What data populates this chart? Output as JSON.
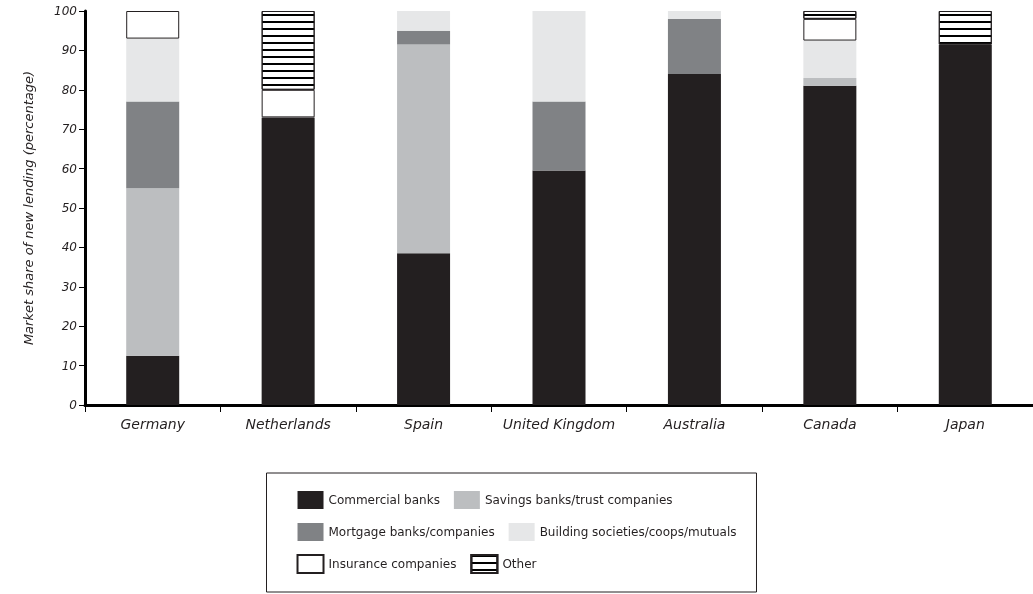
{
  "chart_data": {
    "type": "bar",
    "stacked": true,
    "ylabel": "Market share of new lending (percentage)",
    "categories": [
      "Germany",
      "Netherlands",
      "Spain",
      "United Kingdom",
      "Australia",
      "Canada",
      "Japan"
    ],
    "series": [
      {
        "name": "Commercial banks",
        "color": "#231f20",
        "values": [
          12.5,
          73,
          38.5,
          59.5,
          84,
          81,
          91.5
        ]
      },
      {
        "name": "Savings banks/trust companies",
        "color": "#bcbec0",
        "values": [
          42.5,
          null,
          53,
          null,
          null,
          2,
          null
        ]
      },
      {
        "name": "Mortgage banks/companies",
        "color": "#808285",
        "values": [
          22,
          null,
          3.5,
          17.5,
          14,
          null,
          null
        ]
      },
      {
        "name": "Building societies/coops/mutuals",
        "color": "#e6e7e8",
        "values": [
          16,
          null,
          5,
          23,
          2,
          9.5,
          null
        ]
      },
      {
        "name": "Insurance companies",
        "color": "#ffffff",
        "values": [
          7,
          7,
          null,
          null,
          null,
          5.5,
          null
        ]
      },
      {
        "name": "Other",
        "color": "#ffffff",
        "values": [
          null,
          20,
          null,
          null,
          null,
          2,
          8.5
        ]
      }
    ],
    "ylim": [
      0,
      100
    ],
    "yticks": [
      0,
      10,
      20,
      30,
      40,
      50,
      60,
      70,
      80,
      90,
      100
    ],
    "grid": false,
    "legend": "bottom"
  }
}
